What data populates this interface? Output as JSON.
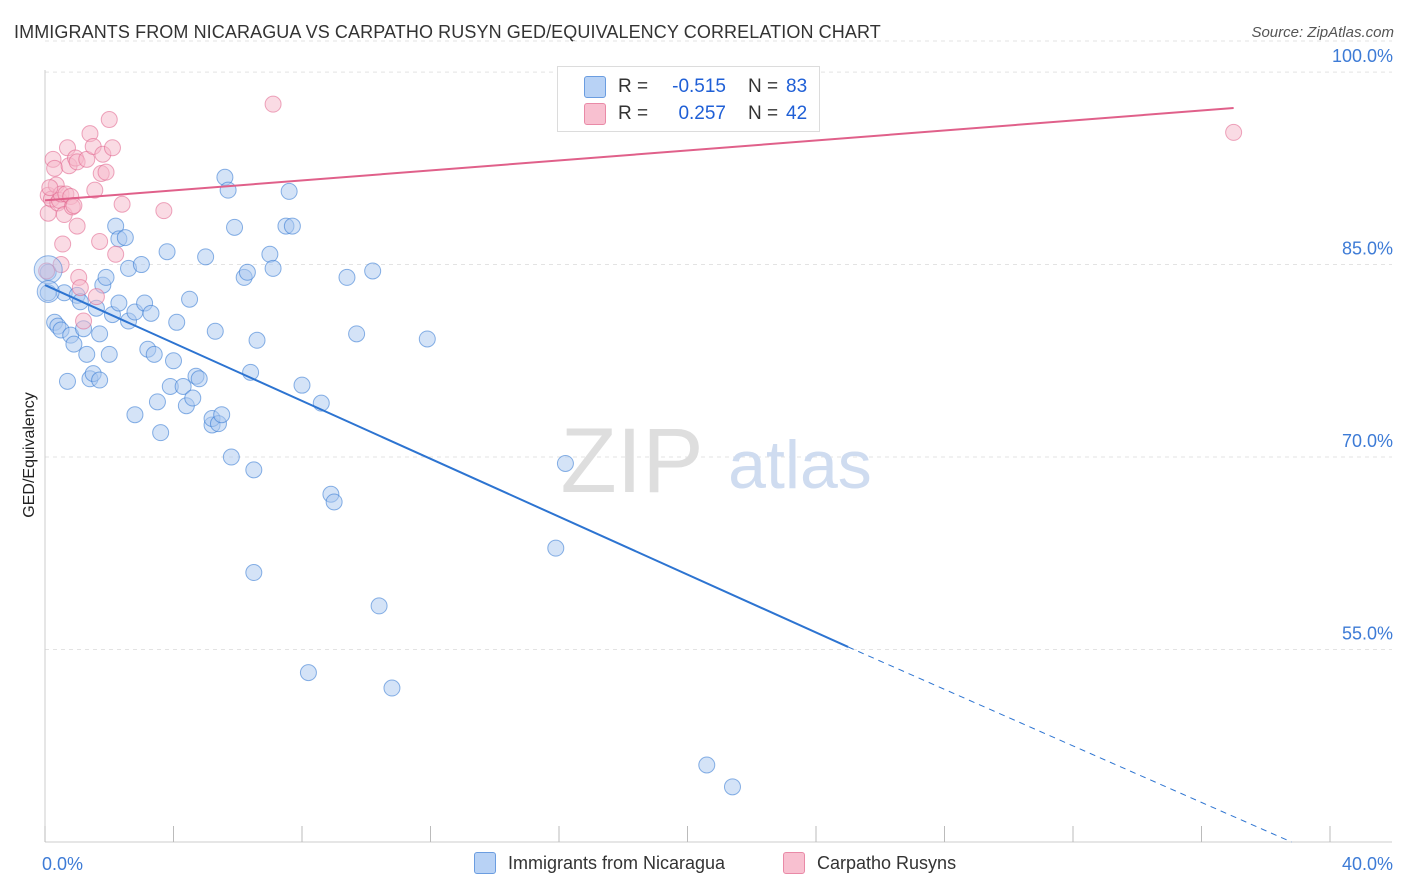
{
  "title": "IMMIGRANTS FROM NICARAGUA VS CARPATHO RUSYN GED/EQUIVALENCY CORRELATION CHART",
  "source": "Source: ZipAtlas.com",
  "watermark": {
    "zip": "ZIP",
    "atlas": "atlas"
  },
  "legend": {
    "r_label": "R =",
    "n_label": "N =",
    "rows": [
      {
        "r": "-0.515",
        "n": "83",
        "fill": "#b8d2f5",
        "stroke": "#6b9de0"
      },
      {
        "r": "0.257",
        "n": "42",
        "fill": "#f8c0d0",
        "stroke": "#e98aa7"
      }
    ]
  },
  "bottom_legend": [
    "Immigrants from Nicaragua",
    "Carpatho Rusyns"
  ],
  "colors": {
    "blue": "#2d74d1",
    "pink": "#e0608a",
    "blue_fill": "#aac8f0",
    "pink_fill": "#f6b7c9",
    "axis_text": "#3d7bd6",
    "grid": "#e3e3e3"
  },
  "chart_data": {
    "type": "scatter",
    "xlabel": "",
    "ylabel": "GED/Equivalency",
    "xlim": [
      0,
      40
    ],
    "ylim": [
      40,
      102.5
    ],
    "x_tick_labels": [
      "0.0%",
      "40.0%"
    ],
    "y_ticks": [
      55,
      70,
      85,
      100
    ],
    "y_tick_labels": [
      "55.0%",
      "70.0%",
      "85.0%",
      "100.0%"
    ],
    "grid": true,
    "legend_position": "top-center",
    "series": [
      {
        "name": "Immigrants from Nicaragua",
        "color": "#2d74d1",
        "R": -0.515,
        "N": 83,
        "trend": {
          "x0": 0,
          "y0": 83.4,
          "x1": 25.0,
          "y1": 55.2,
          "dash_to_x": 38.8,
          "dash_to_y": 40.0
        },
        "points": [
          [
            0.1,
            84.4
          ],
          [
            0.1,
            82.8
          ],
          [
            0.3,
            80.5
          ],
          [
            0.4,
            80.2
          ],
          [
            0.5,
            79.9
          ],
          [
            0.6,
            82.8
          ],
          [
            0.7,
            75.9
          ],
          [
            0.8,
            79.5
          ],
          [
            0.9,
            78.8
          ],
          [
            1.0,
            82.6
          ],
          [
            1.1,
            82.1
          ],
          [
            1.2,
            80.0
          ],
          [
            1.3,
            78.0
          ],
          [
            1.4,
            76.1
          ],
          [
            1.5,
            76.5
          ],
          [
            1.6,
            81.6
          ],
          [
            1.7,
            79.6
          ],
          [
            1.7,
            76.0
          ],
          [
            1.8,
            83.4
          ],
          [
            1.9,
            84.0
          ],
          [
            2.0,
            78.0
          ],
          [
            2.1,
            81.1
          ],
          [
            2.2,
            88.0
          ],
          [
            2.3,
            87.0
          ],
          [
            2.3,
            82.0
          ],
          [
            2.5,
            87.1
          ],
          [
            2.6,
            80.6
          ],
          [
            2.6,
            84.7
          ],
          [
            2.8,
            81.3
          ],
          [
            2.8,
            73.3
          ],
          [
            3.0,
            85.0
          ],
          [
            3.1,
            82.0
          ],
          [
            3.2,
            78.4
          ],
          [
            3.3,
            81.2
          ],
          [
            3.4,
            78.0
          ],
          [
            3.5,
            74.3
          ],
          [
            3.6,
            71.9
          ],
          [
            3.8,
            86.0
          ],
          [
            3.9,
            75.5
          ],
          [
            4.0,
            77.5
          ],
          [
            4.1,
            80.5
          ],
          [
            4.3,
            75.5
          ],
          [
            4.4,
            74.0
          ],
          [
            4.5,
            82.3
          ],
          [
            4.6,
            74.6
          ],
          [
            4.7,
            76.3
          ],
          [
            4.8,
            76.1
          ],
          [
            5.0,
            85.6
          ],
          [
            5.2,
            72.5
          ],
          [
            5.2,
            73.0
          ],
          [
            5.3,
            79.8
          ],
          [
            5.4,
            72.6
          ],
          [
            5.5,
            73.3
          ],
          [
            5.6,
            91.8
          ],
          [
            5.7,
            90.8
          ],
          [
            5.8,
            70.0
          ],
          [
            5.9,
            87.9
          ],
          [
            6.2,
            84.0
          ],
          [
            6.3,
            84.4
          ],
          [
            6.4,
            76.6
          ],
          [
            6.5,
            69.0
          ],
          [
            6.5,
            61.0
          ],
          [
            6.6,
            79.1
          ],
          [
            7.0,
            85.8
          ],
          [
            7.1,
            84.7
          ],
          [
            7.5,
            88.0
          ],
          [
            7.6,
            90.7
          ],
          [
            7.7,
            88.0
          ],
          [
            8.0,
            75.6
          ],
          [
            8.2,
            53.2
          ],
          [
            8.6,
            74.2
          ],
          [
            8.9,
            67.1
          ],
          [
            9.0,
            66.5
          ],
          [
            9.4,
            84.0
          ],
          [
            9.7,
            79.6
          ],
          [
            10.2,
            84.5
          ],
          [
            10.4,
            58.4
          ],
          [
            10.8,
            52.0
          ],
          [
            11.9,
            79.2
          ],
          [
            16.2,
            69.5
          ],
          [
            15.9,
            62.9
          ],
          [
            20.6,
            46.0
          ],
          [
            21.4,
            44.3
          ]
        ]
      },
      {
        "name": "Carpatho Rusyns",
        "color": "#e0608a",
        "R": 0.257,
        "N": 42,
        "trend": {
          "x0": 0,
          "y0": 90.0,
          "x1": 37.0,
          "y1": 97.2
        },
        "points": [
          [
            0.05,
            84.5
          ],
          [
            0.1,
            89.0
          ],
          [
            0.1,
            90.4
          ],
          [
            0.2,
            90.1
          ],
          [
            0.25,
            93.2
          ],
          [
            0.3,
            92.5
          ],
          [
            0.35,
            91.2
          ],
          [
            0.4,
            89.8
          ],
          [
            0.45,
            90.0
          ],
          [
            0.5,
            90.5
          ],
          [
            0.55,
            86.6
          ],
          [
            0.6,
            88.9
          ],
          [
            0.65,
            90.5
          ],
          [
            0.7,
            94.1
          ],
          [
            0.75,
            92.7
          ],
          [
            0.8,
            90.3
          ],
          [
            0.85,
            89.5
          ],
          [
            0.9,
            89.6
          ],
          [
            0.95,
            93.3
          ],
          [
            1.0,
            93.0
          ],
          [
            1.0,
            88.0
          ],
          [
            1.05,
            84.0
          ],
          [
            1.1,
            83.2
          ],
          [
            1.2,
            80.6
          ],
          [
            1.3,
            93.2
          ],
          [
            1.4,
            95.2
          ],
          [
            1.5,
            94.2
          ],
          [
            1.6,
            82.5
          ],
          [
            1.7,
            86.8
          ],
          [
            1.75,
            92.1
          ],
          [
            1.8,
            93.6
          ],
          [
            1.9,
            92.2
          ],
          [
            2.0,
            96.3
          ],
          [
            2.1,
            94.1
          ],
          [
            2.2,
            85.8
          ],
          [
            2.4,
            89.7
          ],
          [
            3.7,
            89.2
          ],
          [
            7.1,
            97.5
          ],
          [
            37.0,
            95.3
          ],
          [
            0.15,
            91.0
          ],
          [
            0.5,
            85.0
          ],
          [
            1.55,
            90.8
          ]
        ]
      }
    ]
  }
}
